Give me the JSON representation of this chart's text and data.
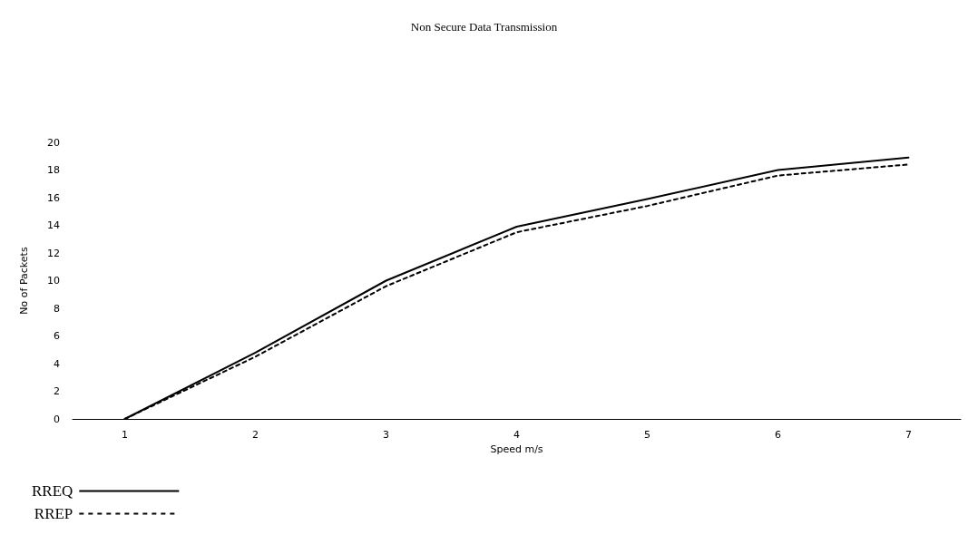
{
  "chart_data": {
    "type": "line",
    "title": "Non Secure Data Transmission",
    "xlabel": "Speed m/s",
    "ylabel": "No of Packets",
    "x": [
      1,
      2,
      3,
      4,
      5,
      6,
      7
    ],
    "series": [
      {
        "name": "RREQ",
        "color": "#000000",
        "line_style": "solid",
        "values": [
          0,
          4.8,
          10,
          13.9,
          15.9,
          18,
          18.9
        ]
      },
      {
        "name": "RREP",
        "color": "#000000",
        "line_style": "dashed",
        "values": [
          0,
          4.5,
          9.6,
          13.5,
          15.4,
          17.6,
          18.4
        ]
      }
    ],
    "xlim": [
      0.6,
      7.4
    ],
    "xticks": [
      1,
      2,
      3,
      4,
      5,
      6,
      7
    ],
    "ylim": [
      0,
      20
    ],
    "yticks": [
      0,
      2,
      4,
      6,
      8,
      10,
      12,
      14,
      16,
      18,
      20
    ],
    "grid": false,
    "legend": "bottom left",
    "marker": "none"
  }
}
